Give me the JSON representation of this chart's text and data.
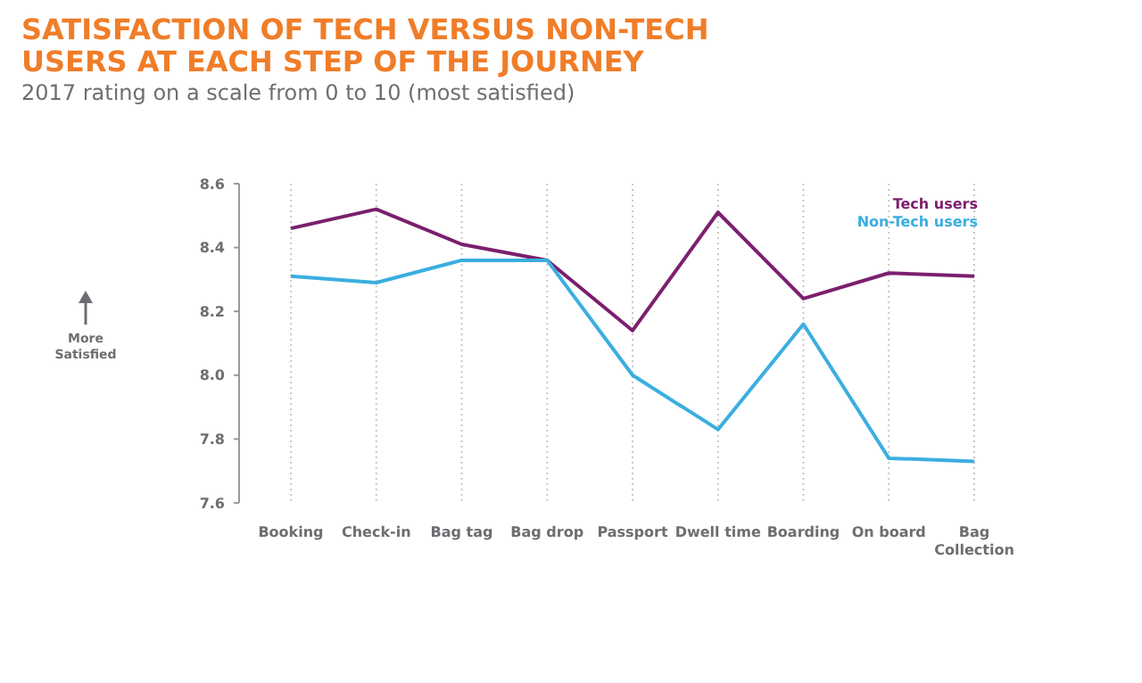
{
  "chart_data": {
    "type": "line",
    "title": "SATISFACTION OF TECH VERSUS NON-TECH USERS AT EACH STEP OF THE JOURNEY",
    "subtitle": "2017 rating on a scale from 0 to 10 (most satisfied)",
    "annotations": [
      "More Satisfied"
    ],
    "categories": [
      "Booking",
      "Check-in",
      "Bag tag",
      "Bag drop",
      "Passport",
      "Dwell time",
      "Boarding",
      "On board",
      "Bag Collection"
    ],
    "series": [
      {
        "name": "Tech users",
        "color": "#7b1f6e",
        "values": [
          8.46,
          8.52,
          8.41,
          8.36,
          8.14,
          8.51,
          8.24,
          8.32,
          8.31
        ]
      },
      {
        "name": "Non-Tech users",
        "color": "#3aaee0",
        "values": [
          8.31,
          8.29,
          8.36,
          8.36,
          8.0,
          7.83,
          8.16,
          7.74,
          7.73
        ]
      }
    ],
    "ylim": [
      7.6,
      8.6
    ],
    "yticks": [
      {
        "value": 7.6,
        "label": "7.6"
      },
      {
        "value": 7.8,
        "label": "7.8"
      },
      {
        "value": 8,
        "label": "8.0"
      },
      {
        "value": 8.2,
        "label": "8.2"
      },
      {
        "value": 8.4,
        "label": "8.4"
      },
      {
        "value": 8.6,
        "label": "8.6"
      }
    ],
    "grid": "x",
    "legend": "top right",
    "marker": "none",
    "line_style": "solid"
  }
}
